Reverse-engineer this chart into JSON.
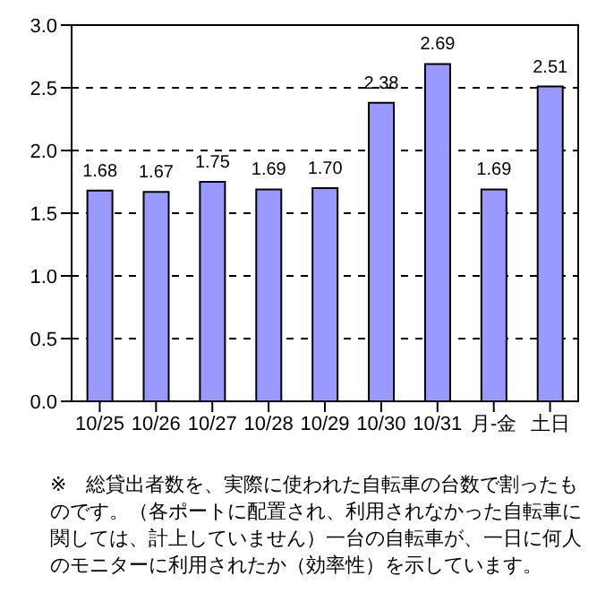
{
  "chart_data": {
    "type": "bar",
    "categories": [
      "10/25",
      "10/26",
      "10/27",
      "10/28",
      "10/29",
      "10/30",
      "10/31",
      "月-金",
      "土日"
    ],
    "values": [
      1.68,
      1.67,
      1.75,
      1.69,
      1.7,
      2.38,
      2.69,
      1.69,
      2.51
    ],
    "value_labels": [
      "1.68",
      "1.67",
      "1.75",
      "1.69",
      "1.70",
      "2.38",
      "2.69",
      "1.69",
      "2.51"
    ],
    "color": "#9999ff",
    "grid": "y",
    "ylim": [
      0,
      3
    ],
    "yticks": [
      {
        "value": 0,
        "label": "0.0"
      },
      {
        "value": 0.5,
        "label": "0.5"
      },
      {
        "value": 1,
        "label": "1.0"
      },
      {
        "value": 1.5,
        "label": "1.5"
      },
      {
        "value": 2,
        "label": "2.0"
      },
      {
        "value": 2.5,
        "label": "2.5"
      },
      {
        "value": 3,
        "label": "3.0"
      }
    ],
    "annotations": [
      "※　総貸出者数を、実際に使われた自転車の台数で割ったものです。（各ポートに配置され、利用されなかった自転車に関しては、計上していません）一台の自転車が、一日に何人のモニターに利用されたか（効率性）を示しています。"
    ]
  }
}
